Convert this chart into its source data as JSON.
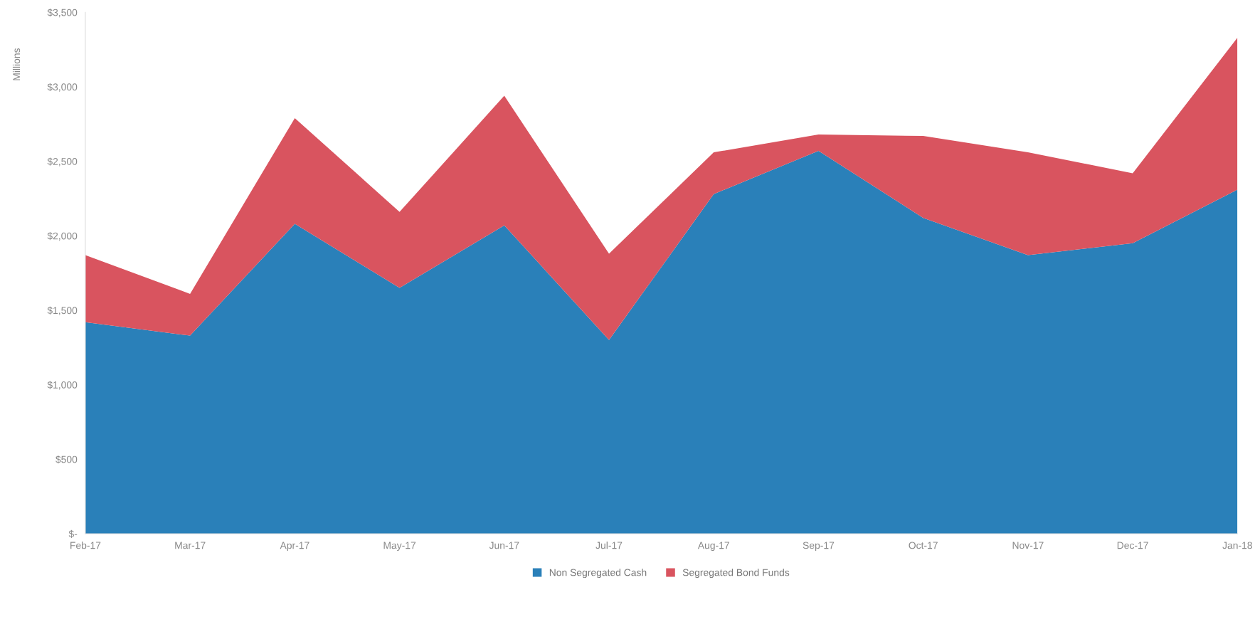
{
  "chart_data": {
    "type": "area",
    "stacked": true,
    "ylabel": "Millions",
    "categories": [
      "Feb-17",
      "Mar-17",
      "Apr-17",
      "May-17",
      "Jun-17",
      "Jul-17",
      "Aug-17",
      "Sep-17",
      "Oct-17",
      "Nov-17",
      "Dec-17",
      "Jan-18"
    ],
    "series": [
      {
        "name": "Non Segregated Cash",
        "color": "#2a80b9",
        "values": [
          1420,
          1330,
          2080,
          1650,
          2070,
          1300,
          2280,
          2570,
          2120,
          1870,
          1950,
          2310
        ]
      },
      {
        "name": "Segregated Bond Funds",
        "color": "#d9545f",
        "values": [
          450,
          280,
          710,
          510,
          870,
          580,
          280,
          110,
          550,
          690,
          470,
          1020
        ]
      }
    ],
    "ylim": [
      0,
      3500
    ],
    "yticks": [
      {
        "value": 0,
        "label": "$-"
      },
      {
        "value": 500,
        "label": "$500"
      },
      {
        "value": 1000,
        "label": "$1,000"
      },
      {
        "value": 1500,
        "label": "$1,500"
      },
      {
        "value": 2000,
        "label": "$2,000"
      },
      {
        "value": 2500,
        "label": "$2,500"
      },
      {
        "value": 3000,
        "label": "$3,000"
      },
      {
        "value": 3500,
        "label": "$3,500"
      }
    ],
    "grid": false,
    "legend": "bottom"
  }
}
